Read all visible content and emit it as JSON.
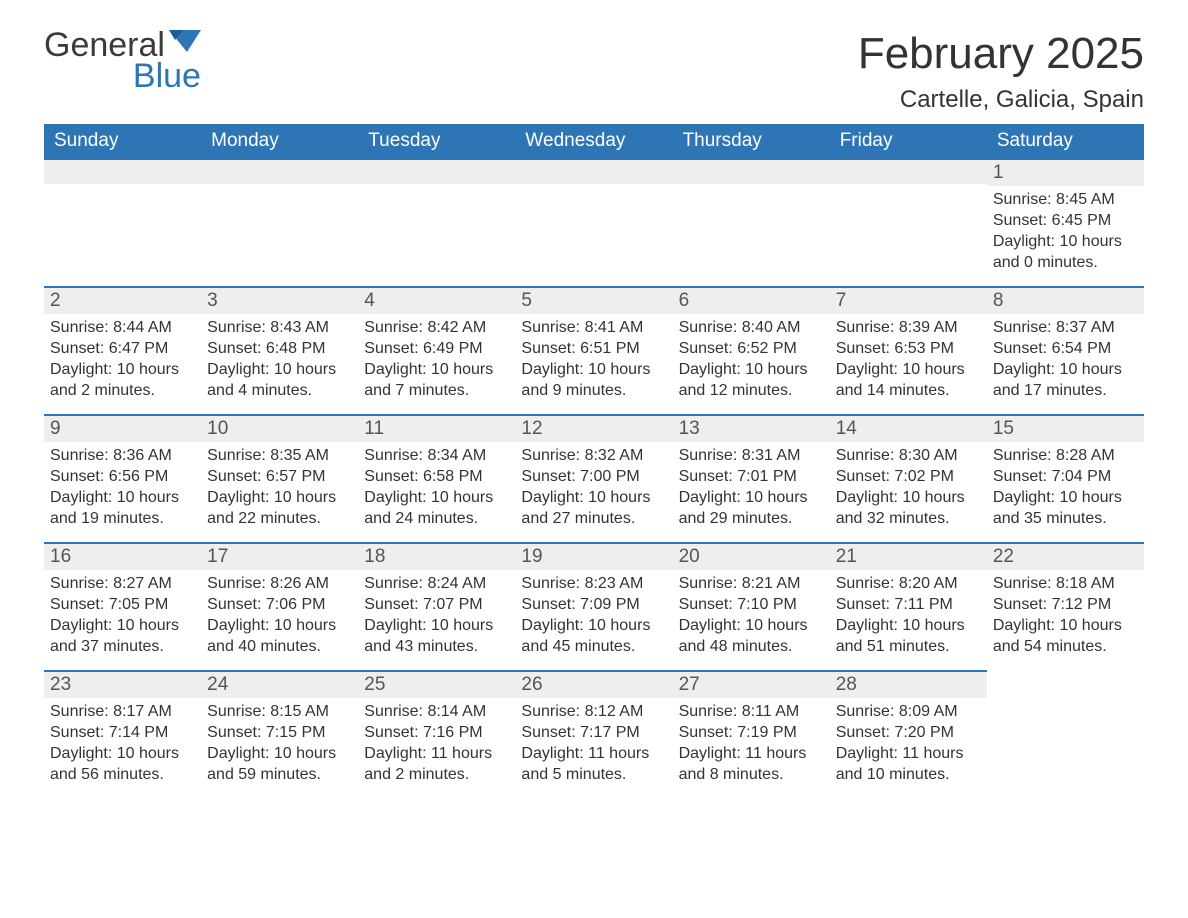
{
  "logo": {
    "word1": "General",
    "word2": "Blue"
  },
  "title": "February 2025",
  "location": "Cartelle, Galicia, Spain",
  "colors": {
    "header_bg": "#2e75b6",
    "header_text": "#ffffff",
    "day_bar_bg": "#eeeeee",
    "day_bar_border": "#2e75b6",
    "body_text": "#333333",
    "logo_gray": "#3a3a3a",
    "logo_blue": "#2e75b6"
  },
  "typography": {
    "title_fontsize": 44,
    "location_fontsize": 24,
    "weekday_fontsize": 19,
    "daynum_fontsize": 19,
    "body_fontsize": 16
  },
  "weekdays": [
    "Sunday",
    "Monday",
    "Tuesday",
    "Wednesday",
    "Thursday",
    "Friday",
    "Saturday"
  ],
  "labels": {
    "sunrise": "Sunrise:",
    "sunset": "Sunset:",
    "daylight": "Daylight:"
  },
  "first_weekday_index": 6,
  "days": [
    {
      "n": 1,
      "sunrise": "8:45 AM",
      "sunset": "6:45 PM",
      "daylight": "10 hours and 0 minutes."
    },
    {
      "n": 2,
      "sunrise": "8:44 AM",
      "sunset": "6:47 PM",
      "daylight": "10 hours and 2 minutes."
    },
    {
      "n": 3,
      "sunrise": "8:43 AM",
      "sunset": "6:48 PM",
      "daylight": "10 hours and 4 minutes."
    },
    {
      "n": 4,
      "sunrise": "8:42 AM",
      "sunset": "6:49 PM",
      "daylight": "10 hours and 7 minutes."
    },
    {
      "n": 5,
      "sunrise": "8:41 AM",
      "sunset": "6:51 PM",
      "daylight": "10 hours and 9 minutes."
    },
    {
      "n": 6,
      "sunrise": "8:40 AM",
      "sunset": "6:52 PM",
      "daylight": "10 hours and 12 minutes."
    },
    {
      "n": 7,
      "sunrise": "8:39 AM",
      "sunset": "6:53 PM",
      "daylight": "10 hours and 14 minutes."
    },
    {
      "n": 8,
      "sunrise": "8:37 AM",
      "sunset": "6:54 PM",
      "daylight": "10 hours and 17 minutes."
    },
    {
      "n": 9,
      "sunrise": "8:36 AM",
      "sunset": "6:56 PM",
      "daylight": "10 hours and 19 minutes."
    },
    {
      "n": 10,
      "sunrise": "8:35 AM",
      "sunset": "6:57 PM",
      "daylight": "10 hours and 22 minutes."
    },
    {
      "n": 11,
      "sunrise": "8:34 AM",
      "sunset": "6:58 PM",
      "daylight": "10 hours and 24 minutes."
    },
    {
      "n": 12,
      "sunrise": "8:32 AM",
      "sunset": "7:00 PM",
      "daylight": "10 hours and 27 minutes."
    },
    {
      "n": 13,
      "sunrise": "8:31 AM",
      "sunset": "7:01 PM",
      "daylight": "10 hours and 29 minutes."
    },
    {
      "n": 14,
      "sunrise": "8:30 AM",
      "sunset": "7:02 PM",
      "daylight": "10 hours and 32 minutes."
    },
    {
      "n": 15,
      "sunrise": "8:28 AM",
      "sunset": "7:04 PM",
      "daylight": "10 hours and 35 minutes."
    },
    {
      "n": 16,
      "sunrise": "8:27 AM",
      "sunset": "7:05 PM",
      "daylight": "10 hours and 37 minutes."
    },
    {
      "n": 17,
      "sunrise": "8:26 AM",
      "sunset": "7:06 PM",
      "daylight": "10 hours and 40 minutes."
    },
    {
      "n": 18,
      "sunrise": "8:24 AM",
      "sunset": "7:07 PM",
      "daylight": "10 hours and 43 minutes."
    },
    {
      "n": 19,
      "sunrise": "8:23 AM",
      "sunset": "7:09 PM",
      "daylight": "10 hours and 45 minutes."
    },
    {
      "n": 20,
      "sunrise": "8:21 AM",
      "sunset": "7:10 PM",
      "daylight": "10 hours and 48 minutes."
    },
    {
      "n": 21,
      "sunrise": "8:20 AM",
      "sunset": "7:11 PM",
      "daylight": "10 hours and 51 minutes."
    },
    {
      "n": 22,
      "sunrise": "8:18 AM",
      "sunset": "7:12 PM",
      "daylight": "10 hours and 54 minutes."
    },
    {
      "n": 23,
      "sunrise": "8:17 AM",
      "sunset": "7:14 PM",
      "daylight": "10 hours and 56 minutes."
    },
    {
      "n": 24,
      "sunrise": "8:15 AM",
      "sunset": "7:15 PM",
      "daylight": "10 hours and 59 minutes."
    },
    {
      "n": 25,
      "sunrise": "8:14 AM",
      "sunset": "7:16 PM",
      "daylight": "11 hours and 2 minutes."
    },
    {
      "n": 26,
      "sunrise": "8:12 AM",
      "sunset": "7:17 PM",
      "daylight": "11 hours and 5 minutes."
    },
    {
      "n": 27,
      "sunrise": "8:11 AM",
      "sunset": "7:19 PM",
      "daylight": "11 hours and 8 minutes."
    },
    {
      "n": 28,
      "sunrise": "8:09 AM",
      "sunset": "7:20 PM",
      "daylight": "11 hours and 10 minutes."
    }
  ]
}
